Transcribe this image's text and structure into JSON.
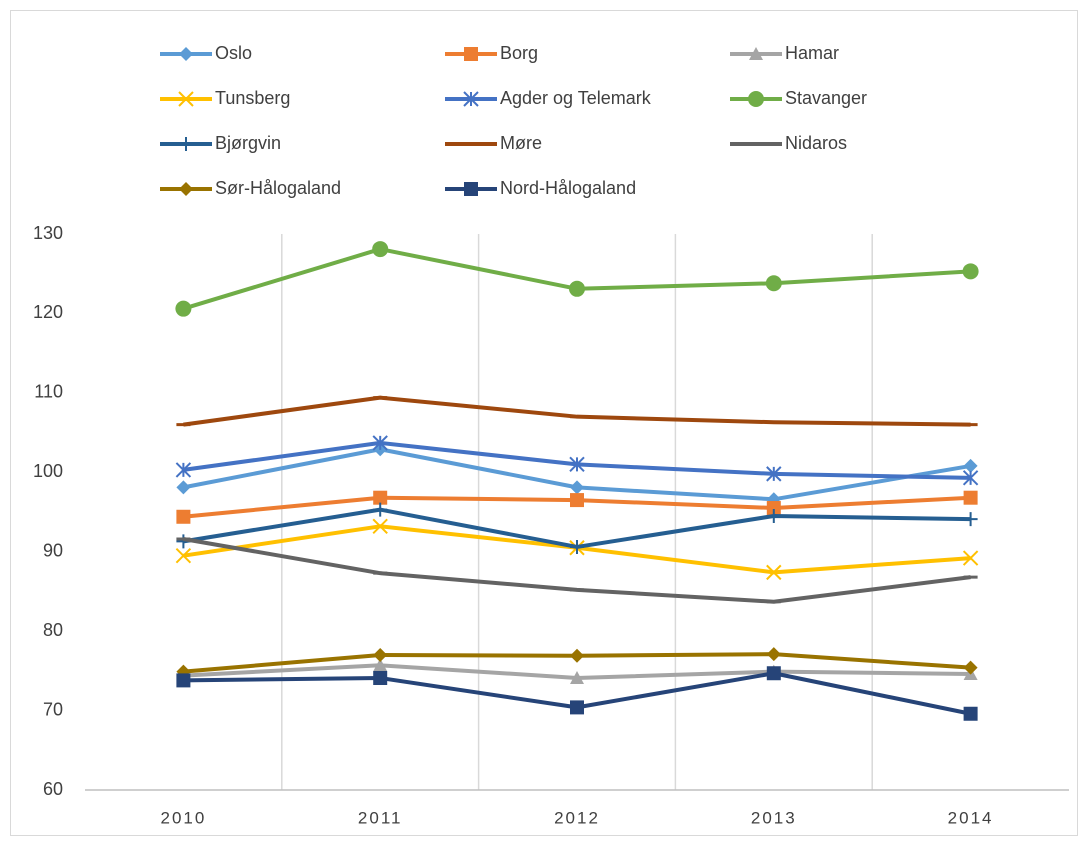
{
  "chart_data": {
    "type": "line",
    "categories": [
      "2010",
      "2011",
      "2012",
      "2013",
      "2014"
    ],
    "ylim": [
      60,
      130
    ],
    "yticks": [
      60,
      70,
      80,
      90,
      100,
      110,
      120,
      130
    ],
    "grid": "x",
    "legend": "top",
    "series": [
      {
        "name": "Oslo",
        "color": "#5b9bd5",
        "marker": "diamond",
        "values": [
          98.1,
          102.9,
          98.1,
          96.6,
          100.8
        ]
      },
      {
        "name": "Borg",
        "color": "#ed7d31",
        "marker": "square",
        "values": [
          94.4,
          96.8,
          96.5,
          95.5,
          96.8
        ]
      },
      {
        "name": "Hamar",
        "color": "#a5a5a5",
        "marker": "triangle",
        "values": [
          74.4,
          75.7,
          74.1,
          74.9,
          74.6
        ]
      },
      {
        "name": "Tunsberg",
        "color": "#ffc000",
        "marker": "x",
        "values": [
          89.5,
          93.2,
          90.5,
          87.4,
          89.2
        ]
      },
      {
        "name": "Agder og Telemark",
        "color": "#4472c4",
        "marker": "star",
        "values": [
          100.3,
          103.7,
          101.0,
          99.8,
          99.3
        ]
      },
      {
        "name": "Stavanger",
        "color": "#70ad47",
        "marker": "circle",
        "values": [
          120.6,
          128.1,
          123.1,
          123.8,
          125.3
        ]
      },
      {
        "name": "Bjørgvin",
        "color": "#255e91",
        "marker": "plus",
        "values": [
          91.3,
          95.3,
          90.6,
          94.5,
          94.1
        ]
      },
      {
        "name": "Møre",
        "color": "#9e480e",
        "marker": "dash",
        "values": [
          106.0,
          109.4,
          107.0,
          106.3,
          106.0
        ]
      },
      {
        "name": "Nidaros",
        "color": "#636363",
        "marker": "dash",
        "values": [
          91.6,
          87.3,
          85.2,
          83.7,
          86.8
        ]
      },
      {
        "name": "Sør-Hålogaland",
        "color": "#997300",
        "marker": "diamond",
        "values": [
          74.9,
          77.0,
          76.9,
          77.1,
          75.4
        ]
      },
      {
        "name": "Nord-Hålogaland",
        "color": "#264478",
        "marker": "square",
        "values": [
          73.8,
          74.1,
          70.4,
          74.7,
          69.6
        ]
      }
    ]
  }
}
